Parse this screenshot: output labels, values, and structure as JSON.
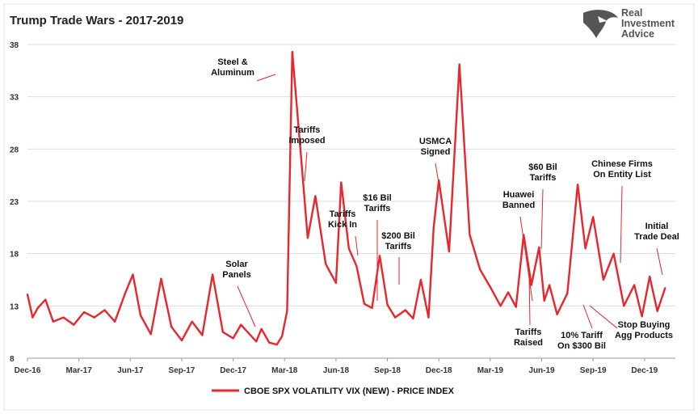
{
  "logo": {
    "lines": [
      "Real",
      "Investment",
      "Advice"
    ],
    "icon": "eagle-head-icon",
    "color": "#555555"
  },
  "chart_data": {
    "type": "line",
    "title": "Trump Trade Wars - 2017-2019",
    "xlabel": "",
    "ylabel": "",
    "ylim": [
      8,
      38
    ],
    "yticks": [
      8,
      13,
      18,
      23,
      28,
      33,
      38
    ],
    "xticks": [
      "Dec-16",
      "Mar-17",
      "Jun-17",
      "Sep-17",
      "Dec-17",
      "Mar-18",
      "Jun-18",
      "Sep-18",
      "Dec-18",
      "Mar-19",
      "Jun-19",
      "Sep-19",
      "Dec-19"
    ],
    "xlim": [
      0,
      12.6
    ],
    "grid": "horizontal",
    "line_color": "#e8262b",
    "legend": {
      "position": "bottom-center"
    },
    "series": [
      {
        "name": "CBOE SPX VOLATILITY VIX (NEW) - PRICE INDEX",
        "x": [
          0,
          0.1,
          0.2,
          0.35,
          0.5,
          0.7,
          0.9,
          1.1,
          1.3,
          1.5,
          1.7,
          1.9,
          2.05,
          2.2,
          2.4,
          2.6,
          2.8,
          3.0,
          3.2,
          3.4,
          3.6,
          3.8,
          4.0,
          4.15,
          4.3,
          4.45,
          4.55,
          4.7,
          4.85,
          4.95,
          5.05,
          5.15,
          5.3,
          5.45,
          5.6,
          5.8,
          6.0,
          6.1,
          6.25,
          6.4,
          6.55,
          6.7,
          6.85,
          7.0,
          7.15,
          7.35,
          7.5,
          7.65,
          7.8,
          7.9,
          8.0,
          8.2,
          8.4,
          8.6,
          8.8,
          9.0,
          9.2,
          9.35,
          9.5,
          9.65,
          9.8,
          9.95,
          10.05,
          10.15,
          10.3,
          10.5,
          10.7,
          10.85,
          11.0,
          11.2,
          11.4,
          11.6,
          11.8,
          11.95,
          12.1,
          12.25,
          12.4
        ],
        "values": [
          14.1,
          11.9,
          12.8,
          13.6,
          11.5,
          11.9,
          11.2,
          12.4,
          11.9,
          12.6,
          11.5,
          14.2,
          16.0,
          12.1,
          10.3,
          15.6,
          11.0,
          9.7,
          11.5,
          10.2,
          16.0,
          10.5,
          9.9,
          11.2,
          10.4,
          9.6,
          10.8,
          9.5,
          9.3,
          10.1,
          12.5,
          37.3,
          28.5,
          19.5,
          23.5,
          17.0,
          15.2,
          24.8,
          18.5,
          16.8,
          13.2,
          12.8,
          17.8,
          13.1,
          11.9,
          12.6,
          11.8,
          15.5,
          11.9,
          20.5,
          25.0,
          18.2,
          36.1,
          19.8,
          16.5,
          14.8,
          13.0,
          14.3,
          12.9,
          19.8,
          15.0,
          18.6,
          13.5,
          15.0,
          12.2,
          14.2,
          24.6,
          18.5,
          21.5,
          15.5,
          18.0,
          13.0,
          15.0,
          12.0,
          15.8,
          12.5,
          14.7
        ]
      }
    ],
    "annotations": [
      {
        "id": "steel",
        "lines": [
          "Steel &",
          "Aluminum"
        ],
        "x": 5.15,
        "y": 37.3
      },
      {
        "id": "tariffs-imposed",
        "lines": [
          "Tariffs",
          "Imposed"
        ],
        "x": 6.1,
        "y": 24.8
      },
      {
        "id": "kick-in",
        "lines": [
          "Tariffs",
          "Kick In"
        ],
        "x": 7.15,
        "y": 18.0
      },
      {
        "id": "16-bil",
        "lines": [
          "$16 Bil",
          "Tariffs"
        ],
        "x": 7.55,
        "y": 13.0
      },
      {
        "id": "200-bil",
        "lines": [
          "$200 Bil",
          "Tariffs"
        ],
        "x": 8.0,
        "y": 15.0
      },
      {
        "id": "solar",
        "lines": [
          "Solar",
          "Panels"
        ],
        "x": 4.95,
        "y": 10.0
      },
      {
        "id": "usmca",
        "lines": [
          "USMCA",
          "Signed"
        ],
        "x": 8.85,
        "y": 23.0
      },
      {
        "id": "huawei",
        "lines": [
          "Huawei",
          "Banned"
        ],
        "x": 10.7,
        "y": 13.3
      },
      {
        "id": "60-bil",
        "lines": [
          "$60 Bil",
          "Tariffs"
        ],
        "x": 10.9,
        "y": 20.0
      },
      {
        "id": "tariffs-raised",
        "lines": [
          "Tariffs",
          "Raised"
        ],
        "x": 10.55,
        "y": 16.3
      },
      {
        "id": "10pct",
        "lines": [
          "10% Tariff",
          "On $300 Bil"
        ],
        "x": 11.7,
        "y": 13.2
      },
      {
        "id": "chinese-firms",
        "lines": [
          "Chinese Firms",
          "On Entity List"
        ],
        "x": 12.45,
        "y": 17.0
      },
      {
        "id": "stop-buying",
        "lines": [
          "Stop Buying",
          "Agg Products"
        ],
        "x": 11.85,
        "y": 11.7
      },
      {
        "id": "initial-deal",
        "lines": [
          "Initial",
          "Trade Deal"
        ],
        "x": 13.35,
        "y": 16.0
      }
    ]
  }
}
